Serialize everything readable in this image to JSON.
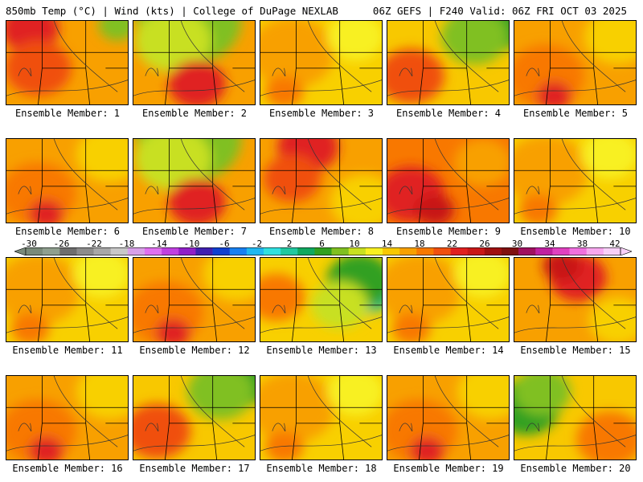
{
  "header": {
    "left": "850mb Temp (°C) | Wind (kts) | College of DuPage NEXLAB",
    "right": "06Z GEFS | F240 Valid: 06Z FRI OCT 03 2025"
  },
  "panel_label_prefix": "Ensemble Member: ",
  "members": [
    {
      "label": "Ensemble Member: 1",
      "theme": "hot-nw"
    },
    {
      "label": "Ensemble Member: 2",
      "theme": "green-n"
    },
    {
      "label": "Ensemble Member: 3",
      "theme": "yellow"
    },
    {
      "label": "Ensemble Member: 4",
      "theme": "green-ne"
    },
    {
      "label": "Ensemble Member: 5",
      "theme": "orange"
    },
    {
      "label": "Ensemble Member: 6",
      "theme": "orange"
    },
    {
      "label": "Ensemble Member: 7",
      "theme": "green-n"
    },
    {
      "label": "Ensemble Member: 8",
      "theme": "hot-n"
    },
    {
      "label": "Ensemble Member: 9",
      "theme": "hot-sw"
    },
    {
      "label": "Ensemble Member: 10",
      "theme": "yellow"
    },
    {
      "label": "Ensemble Member: 11",
      "theme": "yellow"
    },
    {
      "label": "Ensemble Member: 12",
      "theme": "orange"
    },
    {
      "label": "Ensemble Member: 13",
      "theme": "green-e"
    },
    {
      "label": "Ensemble Member: 14",
      "theme": "yellow"
    },
    {
      "label": "Ensemble Member: 15",
      "theme": "hot-ne"
    },
    {
      "label": "Ensemble Member: 16",
      "theme": "orange"
    },
    {
      "label": "Ensemble Member: 17",
      "theme": "green-ne"
    },
    {
      "label": "Ensemble Member: 18",
      "theme": "yellow"
    },
    {
      "label": "Ensemble Member: 19",
      "theme": "orange"
    },
    {
      "label": "Ensemble Member: 20",
      "theme": "green-w"
    }
  ],
  "colorbar": {
    "ticks": [
      "-30",
      "-26",
      "-22",
      "-18",
      "-14",
      "-10",
      "-6",
      "-2",
      "2",
      "6",
      "10",
      "14",
      "18",
      "22",
      "26",
      "30",
      "34",
      "38",
      "42"
    ],
    "colors": [
      "#7a8a7a",
      "#8f9f8f",
      "#6e6e6e",
      "#8c8c8c",
      "#a8a8a8",
      "#c8c8c8",
      "#d8a0e8",
      "#e070f0",
      "#c040e0",
      "#9020c8",
      "#4020b0",
      "#1040d0",
      "#1880f0",
      "#20b8f0",
      "#30e0e0",
      "#20c8a0",
      "#10a860",
      "#30a020",
      "#80c020",
      "#c8e020",
      "#f8f020",
      "#f8c800",
      "#f8a000",
      "#f87800",
      "#f05010",
      "#e02020",
      "#c81818",
      "#a01010",
      "#801010",
      "#a01060",
      "#c020a0",
      "#e040c0",
      "#f070e0",
      "#f8a8f0",
      "#f8d0f8"
    ]
  }
}
